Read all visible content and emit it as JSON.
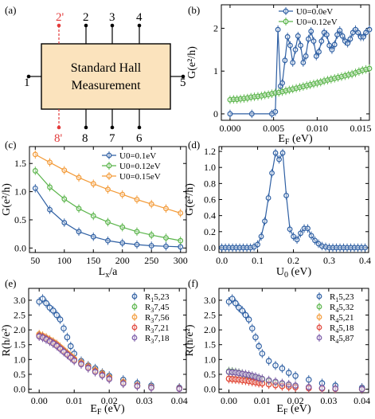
{
  "figure": {
    "colors": {
      "blue": "#2e5fa3",
      "green": "#5ab44a",
      "orange": "#f39a37",
      "red": "#e0453a",
      "purple": "#7a5aa8",
      "hall_fill": "#fbe3bd",
      "dashed_red": "#e23b3b",
      "axis": "#000000"
    }
  },
  "chart_data": [
    {
      "panel": "(a)",
      "type": "diagram",
      "title_line1": "Standard Hall",
      "title_line2": "Measurement",
      "terminals": {
        "t1": "1",
        "t2": "2",
        "t2p": "2'",
        "t3": "3",
        "t4": "4",
        "t5": "5",
        "t6": "6",
        "t7": "7",
        "t8": "8",
        "t8p": "8'"
      }
    },
    {
      "panel": "(b)",
      "type": "line",
      "xlabel": "E_F (eV)",
      "ylabel": "G(e²/h)",
      "xlim": [
        -0.001,
        0.016
      ],
      "ylim": [
        -0.15,
        2.55
      ],
      "xticks": [
        "0.000",
        "0.005",
        "0.010",
        "0.015"
      ],
      "yticks": [
        "0",
        "1",
        "2"
      ],
      "legend_position": "top-right",
      "series": [
        {
          "name": "U0=0.0eV",
          "color": "blue",
          "x": [
            0.0,
            0.0025,
            0.0048,
            0.0052,
            0.0055,
            0.0058,
            0.006,
            0.0063,
            0.0066,
            0.0069,
            0.0072,
            0.0075,
            0.0078,
            0.0081,
            0.0084,
            0.0087,
            0.009,
            0.0093,
            0.0096,
            0.0099,
            0.0102,
            0.0105,
            0.0108,
            0.0111,
            0.0114,
            0.0117,
            0.012,
            0.0123,
            0.0126,
            0.0129,
            0.0132,
            0.0135,
            0.0138,
            0.0141,
            0.0144,
            0.0147,
            0.015,
            0.0153,
            0.0156,
            0.016
          ],
          "y": [
            0.0,
            0.0,
            0.0,
            0.05,
            1.97,
            0.65,
            0.72,
            1.25,
            1.8,
            1.6,
            1.2,
            1.5,
            1.82,
            1.6,
            1.2,
            1.35,
            1.75,
            1.93,
            1.7,
            1.35,
            1.45,
            1.7,
            1.9,
            1.85,
            1.6,
            1.5,
            1.62,
            1.85,
            1.95,
            1.82,
            1.7,
            1.65,
            1.75,
            1.9,
            1.97,
            1.9,
            1.8,
            1.8,
            1.9,
            1.97
          ]
        },
        {
          "name": "U0=0.12eV",
          "color": "green",
          "x": [
            0.0,
            0.0004,
            0.0008,
            0.0012,
            0.0016,
            0.002,
            0.0024,
            0.0028,
            0.0032,
            0.0036,
            0.004,
            0.0044,
            0.0048,
            0.0052,
            0.0056,
            0.006,
            0.0064,
            0.0068,
            0.0072,
            0.0076,
            0.008,
            0.0084,
            0.0088,
            0.0092,
            0.0096,
            0.01,
            0.0104,
            0.0108,
            0.0112,
            0.0116,
            0.012,
            0.0124,
            0.0128,
            0.0132,
            0.0136,
            0.014,
            0.0144,
            0.0148,
            0.0152,
            0.0156,
            0.016
          ],
          "y": [
            0.33,
            0.34,
            0.34,
            0.35,
            0.36,
            0.37,
            0.39,
            0.4,
            0.41,
            0.42,
            0.44,
            0.45,
            0.47,
            0.49,
            0.5,
            0.52,
            0.54,
            0.56,
            0.58,
            0.6,
            0.62,
            0.64,
            0.66,
            0.68,
            0.7,
            0.72,
            0.74,
            0.77,
            0.79,
            0.81,
            0.83,
            0.85,
            0.87,
            0.89,
            0.91,
            0.93,
            0.96,
            0.99,
            1.02,
            1.04,
            1.06
          ]
        }
      ]
    },
    {
      "panel": "(c)",
      "type": "line",
      "xlabel": "L_x/a",
      "ylabel": "G(e²/h)",
      "xlim": [
        40,
        310
      ],
      "ylim": [
        -0.08,
        1.8
      ],
      "xticks": [
        "50",
        "100",
        "150",
        "200",
        "250",
        "300"
      ],
      "yticks": [
        "0.0",
        "0.5",
        "1.0",
        "1.5"
      ],
      "legend_position": "top-right",
      "series": [
        {
          "name": "U0=0.1eV",
          "color": "blue",
          "x": [
            50,
            75,
            100,
            125,
            150,
            175,
            200,
            225,
            250,
            275,
            300
          ],
          "y": [
            1.06,
            0.68,
            0.45,
            0.29,
            0.2,
            0.13,
            0.09,
            0.06,
            0.04,
            0.03,
            0.02
          ]
        },
        {
          "name": "U0=0.12eV",
          "color": "green",
          "x": [
            50,
            75,
            100,
            125,
            150,
            175,
            200,
            225,
            250,
            275,
            300
          ],
          "y": [
            1.37,
            1.08,
            0.87,
            0.7,
            0.57,
            0.46,
            0.37,
            0.29,
            0.23,
            0.18,
            0.13
          ]
        },
        {
          "name": "U0=0.15eV",
          "color": "orange",
          "x": [
            50,
            75,
            100,
            125,
            150,
            175,
            200,
            225,
            250,
            275,
            300
          ],
          "y": [
            1.66,
            1.52,
            1.38,
            1.25,
            1.14,
            1.04,
            0.95,
            0.86,
            0.78,
            0.7,
            0.62
          ]
        }
      ]
    },
    {
      "panel": "(d)",
      "type": "line",
      "xlabel": "U_0 (eV)",
      "ylabel": "G(e²/h)",
      "xlim": [
        -0.008,
        0.41
      ],
      "ylim": [
        -0.06,
        1.26
      ],
      "xticks": [
        "0.0",
        "0.1",
        "0.2",
        "0.3",
        "0.4"
      ],
      "yticks": [
        "0.0",
        "0.2",
        "0.4",
        "0.6",
        "0.8",
        "1.0",
        "1.2"
      ],
      "series": [
        {
          "name": "",
          "color": "blue",
          "x": [
            0.0,
            0.01,
            0.02,
            0.03,
            0.04,
            0.05,
            0.06,
            0.07,
            0.08,
            0.09,
            0.1,
            0.11,
            0.12,
            0.13,
            0.14,
            0.15,
            0.16,
            0.17,
            0.18,
            0.19,
            0.2,
            0.21,
            0.22,
            0.23,
            0.24,
            0.25,
            0.26,
            0.27,
            0.28,
            0.29,
            0.3,
            0.31,
            0.32,
            0.33,
            0.34,
            0.35,
            0.36,
            0.37,
            0.38,
            0.39,
            0.4
          ],
          "y": [
            0.0,
            0.0,
            0.0,
            0.0,
            0.0,
            0.0,
            0.0,
            0.0,
            0.0,
            0.01,
            0.04,
            0.14,
            0.33,
            0.62,
            0.93,
            1.18,
            1.1,
            1.18,
            0.65,
            0.23,
            0.14,
            0.1,
            0.18,
            0.24,
            0.24,
            0.15,
            0.09,
            0.05,
            0.02,
            0.01,
            0.0,
            0.0,
            0.0,
            0.0,
            0.0,
            0.0,
            0.0,
            0.0,
            0.0,
            0.0,
            0.0
          ]
        }
      ]
    },
    {
      "panel": "(e)",
      "type": "scatter",
      "xlabel": "E_F (eV)",
      "ylabel": "R(h/e²)",
      "xlim": [
        -0.003,
        0.042
      ],
      "ylim": [
        -0.12,
        3.4
      ],
      "xticks": [
        "0.00",
        "0.01",
        "0.02",
        "0.03",
        "0.04"
      ],
      "yticks": [
        "0.0",
        "0.5",
        "1.0",
        "1.5",
        "2.0",
        "2.5",
        "3.0"
      ],
      "legend_position": "top-right",
      "series": [
        {
          "name": "R_15,23",
          "color": "blue",
          "x": [
            0.0,
            0.001,
            0.002,
            0.003,
            0.004,
            0.005,
            0.006,
            0.007,
            0.008,
            0.009,
            0.01,
            0.012,
            0.014,
            0.016,
            0.018,
            0.02,
            0.024,
            0.028,
            0.032,
            0.04
          ],
          "y": [
            2.95,
            3.05,
            2.9,
            2.75,
            2.65,
            2.5,
            2.35,
            2.05,
            1.75,
            1.45,
            1.2,
            0.95,
            0.8,
            0.7,
            0.55,
            0.45,
            0.32,
            0.2,
            0.12,
            0.05
          ]
        },
        {
          "name": "R_37,45",
          "color": "green",
          "x": [
            0.0,
            0.001,
            0.002,
            0.003,
            0.004,
            0.005,
            0.006,
            0.007,
            0.008,
            0.009,
            0.01,
            0.012,
            0.014,
            0.016,
            0.018,
            0.02,
            0.024,
            0.028,
            0.032,
            0.04
          ],
          "y": [
            1.82,
            1.78,
            1.72,
            1.65,
            1.58,
            1.5,
            1.4,
            1.3,
            1.2,
            1.1,
            1.0,
            0.88,
            0.75,
            0.62,
            0.5,
            0.38,
            0.22,
            0.12,
            0.06,
            0.02
          ]
        },
        {
          "name": "R_37,56",
          "color": "orange",
          "x": [
            0.0,
            0.001,
            0.002,
            0.003,
            0.004,
            0.005,
            0.006,
            0.007,
            0.008,
            0.009,
            0.01,
            0.012,
            0.014,
            0.016,
            0.018,
            0.02,
            0.024,
            0.028,
            0.032,
            0.04
          ],
          "y": [
            1.85,
            1.8,
            1.74,
            1.67,
            1.6,
            1.52,
            1.42,
            1.32,
            1.22,
            1.12,
            1.02,
            0.9,
            0.77,
            0.64,
            0.52,
            0.4,
            0.24,
            0.13,
            0.07,
            0.02
          ]
        },
        {
          "name": "R_37,21",
          "color": "red",
          "x": [
            0.0,
            0.001,
            0.002,
            0.003,
            0.004,
            0.005,
            0.006,
            0.007,
            0.008,
            0.009,
            0.01,
            0.012,
            0.014,
            0.016,
            0.018,
            0.02,
            0.024,
            0.028,
            0.032,
            0.04
          ],
          "y": [
            1.8,
            1.76,
            1.7,
            1.63,
            1.56,
            1.48,
            1.38,
            1.28,
            1.18,
            1.08,
            0.98,
            0.86,
            0.73,
            0.6,
            0.48,
            0.36,
            0.2,
            0.11,
            0.05,
            0.02
          ]
        },
        {
          "name": "R_37,18",
          "color": "purple",
          "x": [
            0.0,
            0.001,
            0.002,
            0.003,
            0.004,
            0.005,
            0.006,
            0.007,
            0.008,
            0.009,
            0.01,
            0.012,
            0.014,
            0.016,
            0.018,
            0.02,
            0.024,
            0.028,
            0.032,
            0.04
          ],
          "y": [
            1.78,
            1.74,
            1.68,
            1.61,
            1.54,
            1.46,
            1.36,
            1.26,
            1.16,
            1.06,
            0.96,
            0.84,
            0.71,
            0.58,
            0.46,
            0.34,
            0.19,
            0.1,
            0.05,
            0.01
          ]
        }
      ]
    },
    {
      "panel": "(f)",
      "type": "scatter",
      "xlabel": "E_F (eV)",
      "ylabel": "R(h/e²)",
      "xlim": [
        -0.003,
        0.042
      ],
      "ylim": [
        -0.12,
        3.4
      ],
      "xticks": [
        "0.00",
        "0.01",
        "0.02",
        "0.03",
        "0.04"
      ],
      "yticks": [
        "0.0",
        "0.5",
        "1.0",
        "1.5",
        "2.0",
        "2.5",
        "3.0"
      ],
      "legend_position": "top-right",
      "series": [
        {
          "name": "R_15,23",
          "color": "blue",
          "x": [
            0.0,
            0.001,
            0.002,
            0.003,
            0.004,
            0.005,
            0.006,
            0.007,
            0.008,
            0.009,
            0.01,
            0.012,
            0.014,
            0.016,
            0.018,
            0.02,
            0.024,
            0.028,
            0.032,
            0.04
          ],
          "y": [
            2.95,
            3.05,
            2.9,
            2.75,
            2.65,
            2.5,
            2.35,
            2.05,
            1.75,
            1.45,
            1.2,
            0.95,
            0.8,
            0.7,
            0.55,
            0.45,
            0.32,
            0.2,
            0.12,
            0.05
          ]
        },
        {
          "name": "R_45,32",
          "color": "green",
          "x": [
            0.0,
            0.001,
            0.002,
            0.003,
            0.004,
            0.005,
            0.006,
            0.007,
            0.008,
            0.009,
            0.01,
            0.012,
            0.014,
            0.016,
            0.018,
            0.02,
            0.024,
            0.028,
            0.032,
            0.04
          ],
          "y": [
            0.6,
            0.59,
            0.57,
            0.55,
            0.52,
            0.49,
            0.46,
            0.42,
            0.39,
            0.35,
            0.32,
            0.27,
            0.22,
            0.18,
            0.14,
            0.1,
            0.06,
            0.03,
            0.01,
            0.0
          ]
        },
        {
          "name": "R_45,21",
          "color": "orange",
          "x": [
            0.0,
            0.001,
            0.002,
            0.003,
            0.004,
            0.005,
            0.006,
            0.007,
            0.008,
            0.009,
            0.01,
            0.012,
            0.014,
            0.016,
            0.018,
            0.02,
            0.024,
            0.028,
            0.032,
            0.04
          ],
          "y": [
            0.36,
            0.35,
            0.34,
            0.33,
            0.31,
            0.3,
            0.28,
            0.26,
            0.24,
            0.22,
            0.2,
            0.17,
            0.14,
            0.11,
            0.09,
            0.07,
            0.04,
            0.02,
            0.01,
            0.0
          ]
        },
        {
          "name": "R_45,18",
          "color": "red",
          "x": [
            0.0,
            0.001,
            0.002,
            0.003,
            0.004,
            0.005,
            0.006,
            0.007,
            0.008,
            0.009,
            0.01,
            0.012,
            0.014,
            0.016,
            0.018,
            0.02,
            0.024,
            0.028,
            0.032,
            0.04
          ],
          "y": [
            0.35,
            0.34,
            0.33,
            0.32,
            0.3,
            0.29,
            0.27,
            0.25,
            0.23,
            0.21,
            0.19,
            0.16,
            0.13,
            0.1,
            0.08,
            0.06,
            0.03,
            0.02,
            0.01,
            0.0
          ]
        },
        {
          "name": "R_45,87",
          "color": "purple",
          "x": [
            0.0,
            0.001,
            0.002,
            0.003,
            0.004,
            0.005,
            0.006,
            0.007,
            0.008,
            0.009,
            0.01,
            0.012,
            0.014,
            0.016,
            0.018,
            0.02,
            0.024,
            0.028,
            0.032,
            0.04
          ],
          "y": [
            0.58,
            0.57,
            0.56,
            0.54,
            0.52,
            0.5,
            0.48,
            0.45,
            0.42,
            0.38,
            0.35,
            0.3,
            0.25,
            0.2,
            0.16,
            0.12,
            0.07,
            0.04,
            0.02,
            0.0
          ]
        }
      ]
    }
  ]
}
